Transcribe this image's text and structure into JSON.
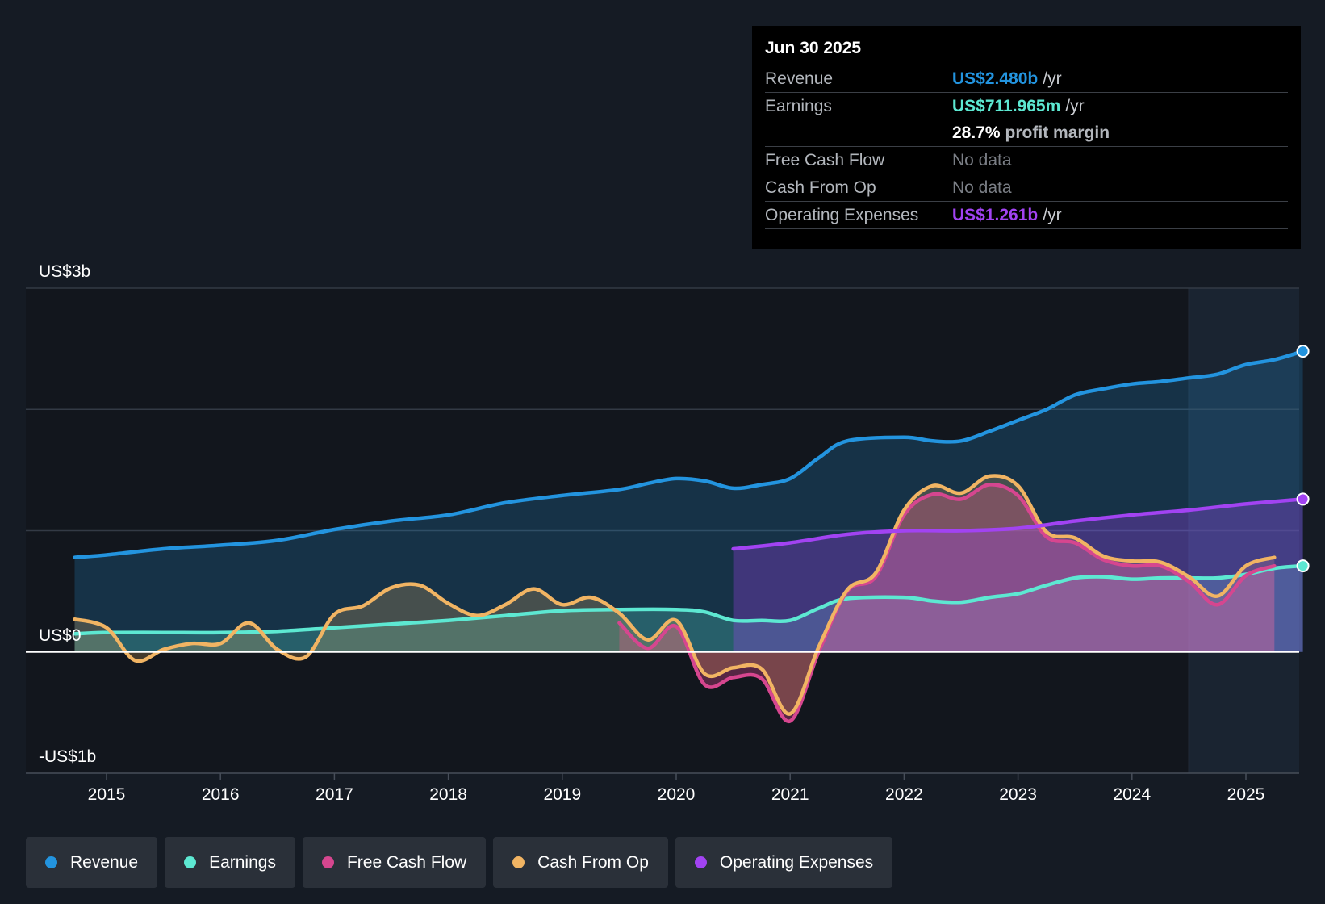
{
  "chart_data": {
    "type": "line",
    "units": "US$ billions",
    "ylim": [
      -1,
      3
    ],
    "y_tick_labels": [
      {
        "value": 3,
        "label": "US$3b"
      },
      {
        "value": 0,
        "label": "US$0"
      },
      {
        "value": -1,
        "label": "-US$1b"
      }
    ],
    "x_tick_labels": [
      "2015",
      "2016",
      "2017",
      "2018",
      "2019",
      "2020",
      "2021",
      "2022",
      "2023",
      "2024",
      "2025"
    ],
    "xlim": [
      2014.25,
      2025.5
    ],
    "forecast_start": 2024.5,
    "series": [
      {
        "name": "Revenue",
        "color": "#2394df",
        "points": [
          [
            2014.72,
            0.78
          ],
          [
            2015.0,
            0.8
          ],
          [
            2015.5,
            0.85
          ],
          [
            2016.0,
            0.88
          ],
          [
            2016.5,
            0.92
          ],
          [
            2017.0,
            1.01
          ],
          [
            2017.5,
            1.08
          ],
          [
            2018.0,
            1.13
          ],
          [
            2018.5,
            1.23
          ],
          [
            2019.0,
            1.29
          ],
          [
            2019.5,
            1.34
          ],
          [
            2019.75,
            1.39
          ],
          [
            2020.0,
            1.43
          ],
          [
            2020.25,
            1.41
          ],
          [
            2020.5,
            1.35
          ],
          [
            2020.75,
            1.38
          ],
          [
            2021.0,
            1.43
          ],
          [
            2021.25,
            1.6
          ],
          [
            2021.5,
            1.74
          ],
          [
            2022.0,
            1.77
          ],
          [
            2022.25,
            1.74
          ],
          [
            2022.5,
            1.74
          ],
          [
            2022.75,
            1.82
          ],
          [
            2023.0,
            1.91
          ],
          [
            2023.25,
            2.0
          ],
          [
            2023.5,
            2.12
          ],
          [
            2023.75,
            2.17
          ],
          [
            2024.0,
            2.21
          ],
          [
            2024.25,
            2.23
          ],
          [
            2024.5,
            2.26
          ],
          [
            2024.75,
            2.29
          ],
          [
            2025.0,
            2.37
          ],
          [
            2025.25,
            2.41
          ],
          [
            2025.5,
            2.48
          ]
        ],
        "fill": true
      },
      {
        "name": "Earnings",
        "color": "#5de8d2",
        "points": [
          [
            2014.72,
            0.15
          ],
          [
            2015.0,
            0.16
          ],
          [
            2015.5,
            0.16
          ],
          [
            2016.0,
            0.16
          ],
          [
            2016.5,
            0.17
          ],
          [
            2017.0,
            0.2
          ],
          [
            2017.5,
            0.23
          ],
          [
            2018.0,
            0.26
          ],
          [
            2018.5,
            0.3
          ],
          [
            2019.0,
            0.34
          ],
          [
            2019.5,
            0.35
          ],
          [
            2020.0,
            0.35
          ],
          [
            2020.25,
            0.33
          ],
          [
            2020.5,
            0.26
          ],
          [
            2020.75,
            0.26
          ],
          [
            2021.0,
            0.26
          ],
          [
            2021.25,
            0.36
          ],
          [
            2021.5,
            0.44
          ],
          [
            2022.0,
            0.45
          ],
          [
            2022.25,
            0.42
          ],
          [
            2022.5,
            0.41
          ],
          [
            2022.75,
            0.45
          ],
          [
            2023.0,
            0.48
          ],
          [
            2023.25,
            0.55
          ],
          [
            2023.5,
            0.61
          ],
          [
            2023.75,
            0.62
          ],
          [
            2024.0,
            0.6
          ],
          [
            2024.25,
            0.61
          ],
          [
            2024.5,
            0.61
          ],
          [
            2024.75,
            0.61
          ],
          [
            2025.0,
            0.64
          ],
          [
            2025.25,
            0.69
          ],
          [
            2025.5,
            0.71
          ]
        ],
        "fill": true
      },
      {
        "name": "Free Cash Flow",
        "color": "#d6468f",
        "points": [
          [
            2019.5,
            0.24
          ],
          [
            2019.75,
            0.03
          ],
          [
            2020.0,
            0.21
          ],
          [
            2020.25,
            -0.27
          ],
          [
            2020.5,
            -0.21
          ],
          [
            2020.75,
            -0.22
          ],
          [
            2021.0,
            -0.57
          ],
          [
            2021.25,
            0.0
          ],
          [
            2021.5,
            0.5
          ],
          [
            2021.75,
            0.62
          ],
          [
            2022.0,
            1.13
          ],
          [
            2022.25,
            1.3
          ],
          [
            2022.5,
            1.26
          ],
          [
            2022.75,
            1.38
          ],
          [
            2023.0,
            1.29
          ],
          [
            2023.25,
            0.95
          ],
          [
            2023.5,
            0.9
          ],
          [
            2023.75,
            0.76
          ],
          [
            2024.0,
            0.71
          ],
          [
            2024.25,
            0.71
          ],
          [
            2024.5,
            0.58
          ],
          [
            2024.75,
            0.39
          ],
          [
            2025.0,
            0.63
          ],
          [
            2025.25,
            0.71
          ]
        ],
        "fill": true
      },
      {
        "name": "Cash From Op",
        "color": "#f1b463",
        "points": [
          [
            2014.72,
            0.27
          ],
          [
            2015.0,
            0.2
          ],
          [
            2015.25,
            -0.07
          ],
          [
            2015.5,
            0.02
          ],
          [
            2015.75,
            0.07
          ],
          [
            2016.0,
            0.07
          ],
          [
            2016.25,
            0.24
          ],
          [
            2016.5,
            0.02
          ],
          [
            2016.75,
            -0.04
          ],
          [
            2017.0,
            0.31
          ],
          [
            2017.25,
            0.38
          ],
          [
            2017.5,
            0.53
          ],
          [
            2017.75,
            0.55
          ],
          [
            2018.0,
            0.4
          ],
          [
            2018.25,
            0.3
          ],
          [
            2018.5,
            0.39
          ],
          [
            2018.75,
            0.52
          ],
          [
            2019.0,
            0.39
          ],
          [
            2019.25,
            0.45
          ],
          [
            2019.5,
            0.32
          ],
          [
            2019.75,
            0.1
          ],
          [
            2020.0,
            0.26
          ],
          [
            2020.25,
            -0.18
          ],
          [
            2020.5,
            -0.13
          ],
          [
            2020.75,
            -0.14
          ],
          [
            2021.0,
            -0.51
          ],
          [
            2021.25,
            0.04
          ],
          [
            2021.5,
            0.51
          ],
          [
            2021.75,
            0.65
          ],
          [
            2022.0,
            1.17
          ],
          [
            2022.25,
            1.37
          ],
          [
            2022.5,
            1.31
          ],
          [
            2022.75,
            1.45
          ],
          [
            2023.0,
            1.37
          ],
          [
            2023.25,
            0.99
          ],
          [
            2023.5,
            0.94
          ],
          [
            2023.75,
            0.79
          ],
          [
            2024.0,
            0.75
          ],
          [
            2024.25,
            0.74
          ],
          [
            2024.5,
            0.62
          ],
          [
            2024.75,
            0.46
          ],
          [
            2025.0,
            0.71
          ],
          [
            2025.25,
            0.78
          ]
        ],
        "fill": true
      },
      {
        "name": "Operating Expenses",
        "color": "#a243f2",
        "points": [
          [
            2020.5,
            0.85
          ],
          [
            2021.0,
            0.9
          ],
          [
            2021.5,
            0.97
          ],
          [
            2022.0,
            1.0
          ],
          [
            2022.5,
            1.0
          ],
          [
            2023.0,
            1.02
          ],
          [
            2023.5,
            1.08
          ],
          [
            2024.0,
            1.13
          ],
          [
            2024.5,
            1.17
          ],
          [
            2025.0,
            1.22
          ],
          [
            2025.5,
            1.26
          ]
        ],
        "fill": true
      }
    ]
  },
  "tooltip": {
    "date": "Jun 30 2025",
    "revenue_label": "Revenue",
    "revenue_value": "US$2.480b",
    "revenue_unit": "/yr",
    "earnings_label": "Earnings",
    "earnings_value": "US$711.965m",
    "earnings_unit": "/yr",
    "margin_value": "28.7%",
    "margin_text": "profit margin",
    "fcf_label": "Free Cash Flow",
    "fcf_value": "No data",
    "cfo_label": "Cash From Op",
    "cfo_value": "No data",
    "opex_label": "Operating Expenses",
    "opex_value": "US$1.261b",
    "opex_unit": "/yr"
  },
  "legend": [
    {
      "label": "Revenue",
      "color": "#2394df"
    },
    {
      "label": "Earnings",
      "color": "#5de8d2"
    },
    {
      "label": "Free Cash Flow",
      "color": "#d6468f"
    },
    {
      "label": "Cash From Op",
      "color": "#f1b463"
    },
    {
      "label": "Operating Expenses",
      "color": "#a243f2"
    }
  ]
}
